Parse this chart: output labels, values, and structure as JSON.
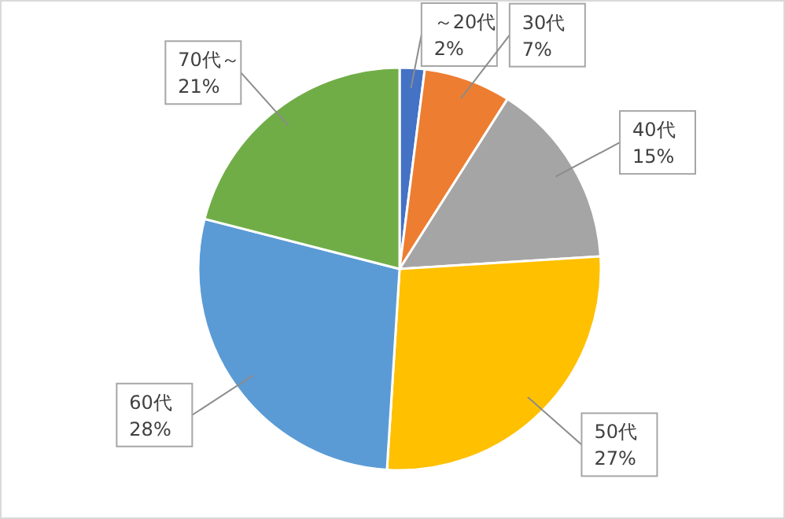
{
  "chart_data": {
    "type": "pie",
    "categories": [
      "～20代",
      "30代",
      "40代",
      "50代",
      "60代",
      "70代～"
    ],
    "values": [
      2,
      7,
      15,
      27,
      28,
      21
    ],
    "colors": [
      "#4472c4",
      "#ed7d31",
      "#a5a5a5",
      "#ffc000",
      "#5b9bd5",
      "#70ad47"
    ],
    "value_labels": [
      "2%",
      "7%",
      "15%",
      "27%",
      "28%",
      "21%"
    ],
    "legend": false
  }
}
